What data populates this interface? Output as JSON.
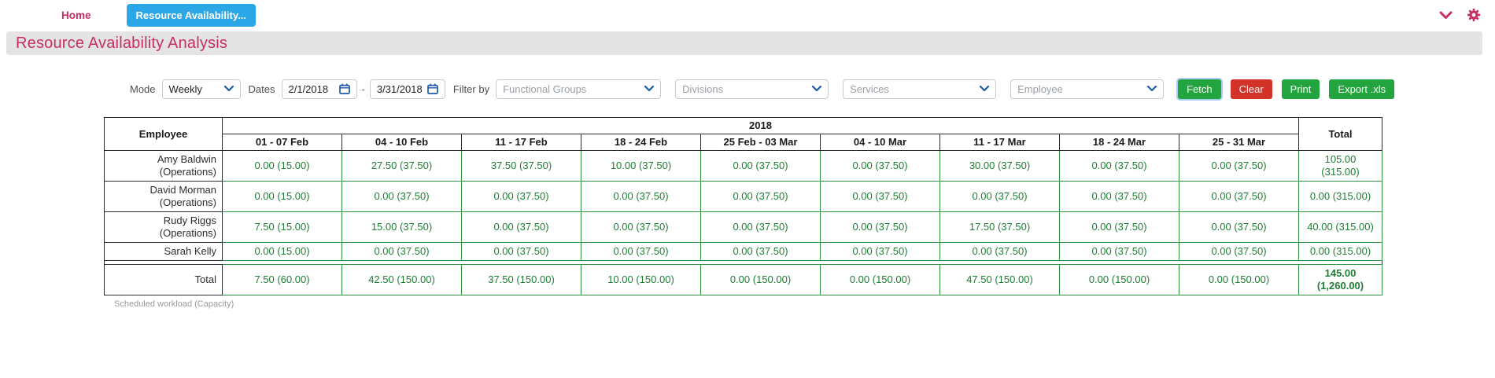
{
  "colors": {
    "accent_pink": "#c92e62",
    "tab_blue": "#2ba7e8",
    "button_green": "#22a43e",
    "button_red": "#d23227",
    "table_green": "#1e7e34",
    "table_border_green": "#2e9442",
    "control_icon_blue": "#1d5ba9",
    "title_bar_bg": "#e4e4e4"
  },
  "nav": {
    "home_label": "Home",
    "active_tab_label": "Resource Availability...",
    "icons": [
      "chevron-down-icon",
      "gear-icon"
    ]
  },
  "header": {
    "title": "Resource Availability Analysis"
  },
  "toolbar": {
    "mode_label": "Mode",
    "mode_value": "Weekly",
    "dates_label": "Dates",
    "date_from": "2/1/2018",
    "date_separator": "-",
    "date_to": "3/31/2018",
    "filter_by_label": "Filter by",
    "filter_placeholders": {
      "functional_groups": "Functional Groups",
      "divisions": "Divisions",
      "services": "Services",
      "employee": "Employee"
    },
    "buttons": {
      "fetch": "Fetch",
      "clear": "Clear",
      "print": "Print",
      "export": "Export .xls"
    }
  },
  "table": {
    "employee_header": "Employee",
    "year_header": "2018",
    "total_header": "Total",
    "week_headers": [
      "01 - 07 Feb",
      "04 - 10 Feb",
      "11 - 17 Feb",
      "18 - 24 Feb",
      "25 Feb - 03 Mar",
      "04 - 10 Mar",
      "11 - 17 Mar",
      "18 - 24 Mar",
      "25 - 31 Mar"
    ],
    "rows": [
      {
        "name": "Amy Baldwin (Operations)",
        "cells": [
          "0.00 (15.00)",
          "27.50 (37.50)",
          "37.50 (37.50)",
          "10.00 (37.50)",
          "0.00 (37.50)",
          "0.00 (37.50)",
          "30.00 (37.50)",
          "0.00 (37.50)",
          "0.00 (37.50)"
        ],
        "total": "105.00\n(315.00)"
      },
      {
        "name": "David Morman (Operations)",
        "cells": [
          "0.00 (15.00)",
          "0.00 (37.50)",
          "0.00 (37.50)",
          "0.00 (37.50)",
          "0.00 (37.50)",
          "0.00 (37.50)",
          "0.00 (37.50)",
          "0.00 (37.50)",
          "0.00 (37.50)"
        ],
        "total": "0.00 (315.00)"
      },
      {
        "name": "Rudy Riggs (Operations)",
        "cells": [
          "7.50 (15.00)",
          "15.00 (37.50)",
          "0.00 (37.50)",
          "0.00 (37.50)",
          "0.00 (37.50)",
          "0.00 (37.50)",
          "17.50 (37.50)",
          "0.00 (37.50)",
          "0.00 (37.50)"
        ],
        "total": "40.00 (315.00)"
      },
      {
        "name": "Sarah Kelly",
        "cells": [
          "0.00 (15.00)",
          "0.00 (37.50)",
          "0.00 (37.50)",
          "0.00 (37.50)",
          "0.00 (37.50)",
          "0.00 (37.50)",
          "0.00 (37.50)",
          "0.00 (37.50)",
          "0.00 (37.50)"
        ],
        "total": "0.00 (315.00)"
      }
    ],
    "total_row": {
      "label": "Total",
      "cells": [
        "7.50 (60.00)",
        "42.50 (150.00)",
        "37.50 (150.00)",
        "10.00 (150.00)",
        "0.00 (150.00)",
        "0.00 (150.00)",
        "47.50 (150.00)",
        "0.00 (150.00)",
        "0.00 (150.00)"
      ],
      "total": "145.00\n(1,260.00)"
    },
    "footnote": "Scheduled workload (Capacity)"
  }
}
